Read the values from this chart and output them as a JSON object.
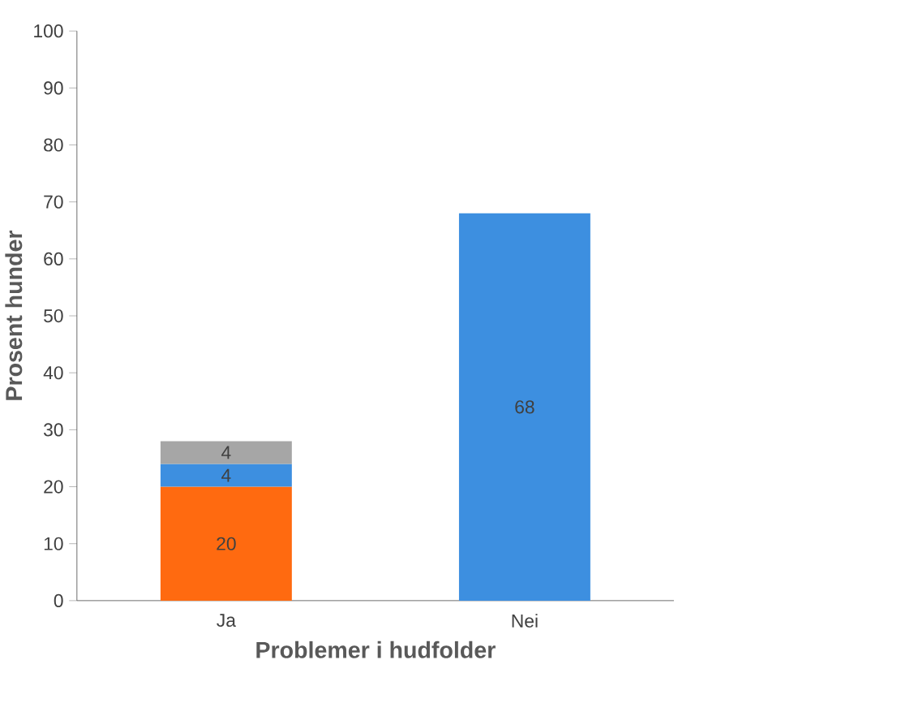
{
  "chart_data": {
    "type": "bar",
    "stacked": true,
    "xlabel": "Problemer i hudfolder",
    "ylabel": "Prosent hunder",
    "categories": [
      "Ja",
      "Nei"
    ],
    "series": [
      {
        "color": "#ff6a10",
        "values": [
          20,
          null
        ]
      },
      {
        "color": "#3d8fe0",
        "values": [
          4,
          68
        ]
      },
      {
        "color": "#a6a6a6",
        "values": [
          4,
          null
        ]
      }
    ],
    "ylim": [
      0,
      100
    ],
    "yticks": [
      0,
      10,
      20,
      30,
      40,
      50,
      60,
      70,
      80,
      90,
      100
    ],
    "data_labels": true
  }
}
